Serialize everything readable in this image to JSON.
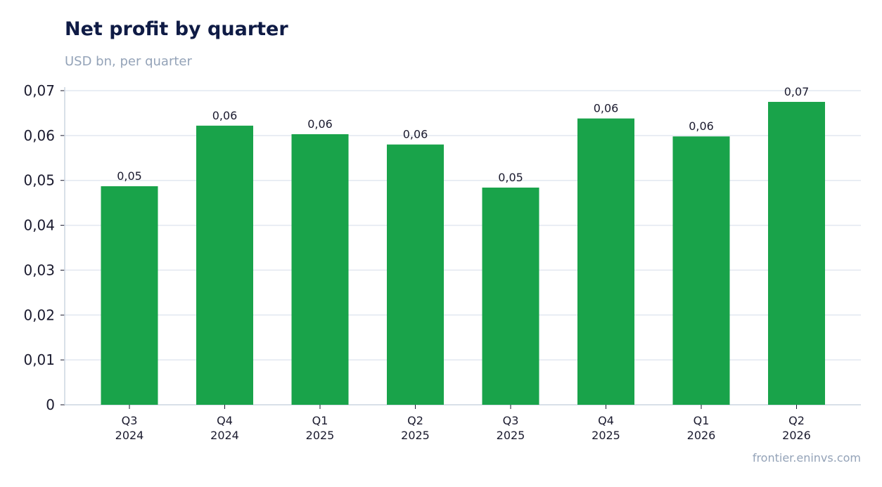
{
  "header": {
    "title": "Net profit by quarter",
    "subtitle": "USD bn, per quarter"
  },
  "footer": {
    "source": "frontier.eninvs.com"
  },
  "colors": {
    "bar": "#19a34a",
    "grid": "#e2e8f0",
    "axis": "#cbd5e1",
    "title": "#0f1b45",
    "subtitle": "#94a3b8"
  },
  "chart_data": {
    "type": "bar",
    "title": "Net profit by quarter",
    "subtitle": "USD bn, per quarter",
    "categories": [
      [
        "Q3",
        "2024"
      ],
      [
        "Q4",
        "2024"
      ],
      [
        "Q1",
        "2025"
      ],
      [
        "Q2",
        "2025"
      ],
      [
        "Q3",
        "2025"
      ],
      [
        "Q4",
        "2025"
      ],
      [
        "Q1",
        "2026"
      ],
      [
        "Q2",
        "2026"
      ]
    ],
    "values": [
      0.0487,
      0.0622,
      0.0603,
      0.058,
      0.0484,
      0.0638,
      0.0598,
      0.0675
    ],
    "data_labels": [
      "0,05",
      "0,06",
      "0,06",
      "0,06",
      "0,05",
      "0,06",
      "0,06",
      "0,07"
    ],
    "ylim": [
      0,
      0.07
    ],
    "yticks": [
      0,
      0.01,
      0.02,
      0.03,
      0.04,
      0.05,
      0.06,
      0.07
    ],
    "ytick_labels": [
      "0",
      "0,01",
      "0,02",
      "0,03",
      "0,04",
      "0,05",
      "0,06",
      "0,07"
    ],
    "grid": true,
    "legend": "none"
  }
}
